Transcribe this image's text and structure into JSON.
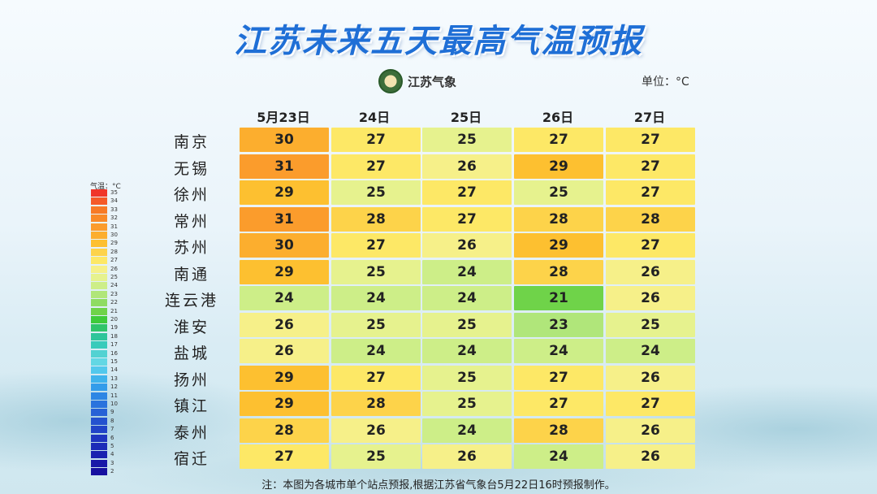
{
  "title": "江苏未来五天最高气温预报",
  "brand": {
    "name": "江苏气象",
    "logo_icon": "jiangsu-meteorology-logo"
  },
  "unit_label": "单位：°C",
  "columns": [
    "5月23日",
    "24日",
    "25日",
    "26日",
    "27日"
  ],
  "rows": [
    {
      "city": "南京",
      "values": [
        "30",
        "27",
        "25",
        "27",
        "27"
      ]
    },
    {
      "city": "无锡",
      "values": [
        "31",
        "27",
        "26",
        "29",
        "27"
      ]
    },
    {
      "city": "徐州",
      "values": [
        "29",
        "25",
        "27",
        "25",
        "27"
      ]
    },
    {
      "city": "常州",
      "values": [
        "31",
        "28",
        "27",
        "28",
        "28"
      ]
    },
    {
      "city": "苏州",
      "values": [
        "30",
        "27",
        "26",
        "29",
        "27"
      ]
    },
    {
      "city": "南通",
      "values": [
        "29",
        "25",
        "24",
        "28",
        "26"
      ]
    },
    {
      "city": "连云港",
      "values": [
        "24",
        "24",
        "24",
        "21",
        "26"
      ]
    },
    {
      "city": "淮安",
      "values": [
        "26",
        "25",
        "25",
        "23",
        "25"
      ]
    },
    {
      "city": "盐城",
      "values": [
        "26",
        "24",
        "24",
        "24",
        "24"
      ]
    },
    {
      "city": "扬州",
      "values": [
        "29",
        "27",
        "25",
        "27",
        "26"
      ]
    },
    {
      "city": "镇江",
      "values": [
        "29",
        "28",
        "25",
        "27",
        "27"
      ]
    },
    {
      "city": "泰州",
      "values": [
        "28",
        "26",
        "24",
        "28",
        "26"
      ]
    },
    {
      "city": "宿迁",
      "values": [
        "27",
        "25",
        "26",
        "24",
        "26"
      ]
    }
  ],
  "scale": {
    "title": "气温：°C",
    "levels": [
      "35",
      "34",
      "33",
      "32",
      "31",
      "30",
      "29",
      "28",
      "27",
      "26",
      "25",
      "24",
      "23",
      "22",
      "21",
      "20",
      "19",
      "18",
      "17",
      "16",
      "15",
      "14",
      "13",
      "12",
      "11",
      "10",
      "9",
      "8",
      "7",
      "6",
      "5",
      "4",
      "3",
      "2"
    ],
    "colors": [
      "#f0362a",
      "#f55a28",
      "#f77a26",
      "#f98a28",
      "#fb9c2c",
      "#fcae2e",
      "#fdc030",
      "#fdd34a",
      "#fde866",
      "#f6f089",
      "#e6f28e",
      "#cdee88",
      "#b0e67a",
      "#8fdc62",
      "#6fd349",
      "#3fcb3a",
      "#30c46a",
      "#2ec59a",
      "#39cbbb",
      "#52d2d2",
      "#62d7e4",
      "#52c8ec",
      "#3fb3ec",
      "#339cea",
      "#2e86e4",
      "#2a73dd",
      "#2762d6",
      "#2452cf",
      "#2144c8",
      "#1f36c0",
      "#1c2cb8",
      "#1a22b0",
      "#1818a8",
      "#1610a0"
    ]
  },
  "footnote": "注：本图为各城市单个站点预报,根据江苏省气象台5月22日16时预报制作。"
}
